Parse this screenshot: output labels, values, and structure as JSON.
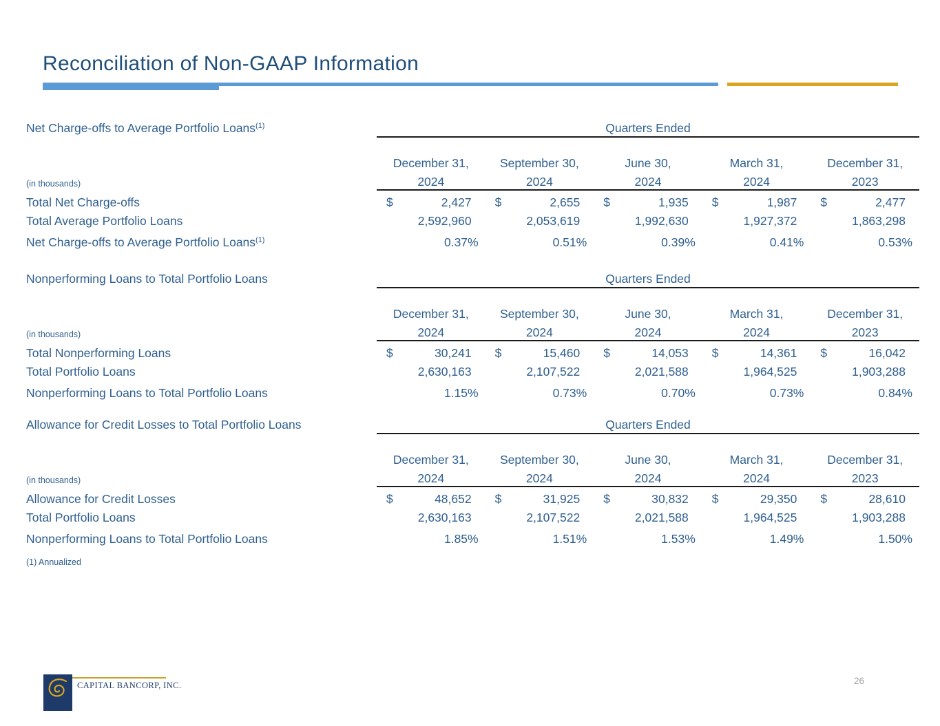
{
  "slide": {
    "title": "Reconciliation of Non-GAAP Information",
    "page_number": "26",
    "footnote": "(1) Annualized",
    "logo_text": "CAPITAL BANCORP, INC.",
    "colors": {
      "title_blue": "#1F4E79",
      "body_text_blue": "#2F5F8F",
      "accent_bar_blue": "#5B9BD5",
      "accent_bar_gold": "#D9A521",
      "logo_navy": "#1E3A68",
      "rule_black": "#1A1A1A",
      "page_number_gray": "#A3A3A3"
    }
  },
  "currency_symbol": "$",
  "tables": [
    {
      "label": "Net Charge-offs to Average Portfolio Loans",
      "label_superscript": "(1)",
      "group_header": "Quarters Ended",
      "units_note": "(in thousands)",
      "columns": [
        {
          "line1": "December 31,",
          "line2": "2024"
        },
        {
          "line1": "September 30,",
          "line2": "2024"
        },
        {
          "line1": "June 30,",
          "line2": "2024"
        },
        {
          "line1": "March 31,",
          "line2": "2024"
        },
        {
          "line1": "December 31,",
          "line2": "2023"
        }
      ],
      "rows": [
        {
          "label": "Total Net Charge-offs",
          "superscript": "",
          "currency": true,
          "percent": false,
          "gap_above": false,
          "values": [
            "2,427",
            "2,655",
            "1,935",
            "1,987",
            "2,477"
          ]
        },
        {
          "label": "Total Average Portfolio Loans",
          "superscript": "",
          "currency": false,
          "percent": false,
          "gap_above": false,
          "values": [
            "2,592,960",
            "2,053,619",
            "1,992,630",
            "1,927,372",
            "1,863,298"
          ]
        },
        {
          "label": "Net Charge-offs to Average Portfolio Loans",
          "superscript": "(1)",
          "currency": false,
          "percent": true,
          "gap_above": true,
          "values": [
            "0.37%",
            "0.51%",
            "0.39%",
            "0.41%",
            "0.53%"
          ]
        }
      ]
    },
    {
      "label": "Nonperforming Loans to Total Portfolio Loans",
      "label_superscript": "",
      "group_header": "Quarters Ended",
      "units_note": "(in thousands)",
      "columns": [
        {
          "line1": "December 31,",
          "line2": "2024"
        },
        {
          "line1": "September 30,",
          "line2": "2024"
        },
        {
          "line1": "June 30,",
          "line2": "2024"
        },
        {
          "line1": "March 31,",
          "line2": "2024"
        },
        {
          "line1": "December 31,",
          "line2": "2023"
        }
      ],
      "rows": [
        {
          "label": "Total Nonperforming Loans",
          "superscript": "",
          "currency": true,
          "percent": false,
          "gap_above": false,
          "values": [
            "30,241",
            "15,460",
            "14,053",
            "14,361",
            "16,042"
          ]
        },
        {
          "label": "Total Portfolio Loans",
          "superscript": "",
          "currency": false,
          "percent": false,
          "gap_above": false,
          "values": [
            "2,630,163",
            "2,107,522",
            "2,021,588",
            "1,964,525",
            "1,903,288"
          ]
        },
        {
          "label": "Nonperforming Loans to Total Portfolio Loans",
          "superscript": "",
          "currency": false,
          "percent": true,
          "gap_above": true,
          "values": [
            "1.15%",
            "0.73%",
            "0.70%",
            "0.73%",
            "0.84%"
          ]
        }
      ]
    },
    {
      "label": "Allowance for Credit Losses to Total Portfolio Loans",
      "label_superscript": "",
      "group_header": "Quarters Ended",
      "units_note": "(in thousands)",
      "columns": [
        {
          "line1": "December 31,",
          "line2": "2024"
        },
        {
          "line1": "September 30,",
          "line2": "2024"
        },
        {
          "line1": "June 30,",
          "line2": "2024"
        },
        {
          "line1": "March 31,",
          "line2": "2024"
        },
        {
          "line1": "December 31,",
          "line2": "2023"
        }
      ],
      "rows": [
        {
          "label": "Allowance for Credit Losses",
          "superscript": "",
          "currency": true,
          "percent": false,
          "gap_above": false,
          "values": [
            "48,652",
            "31,925",
            "30,832",
            "29,350",
            "28,610"
          ]
        },
        {
          "label": "Total Portfolio Loans",
          "superscript": "",
          "currency": false,
          "percent": false,
          "gap_above": false,
          "values": [
            "2,630,163",
            "2,107,522",
            "2,021,588",
            "1,964,525",
            "1,903,288"
          ]
        },
        {
          "label": "Nonperforming Loans to Total Portfolio Loans",
          "superscript": "",
          "currency": false,
          "percent": true,
          "gap_above": true,
          "values": [
            "1.85%",
            "1.51%",
            "1.53%",
            "1.49%",
            "1.50%"
          ]
        }
      ]
    }
  ]
}
